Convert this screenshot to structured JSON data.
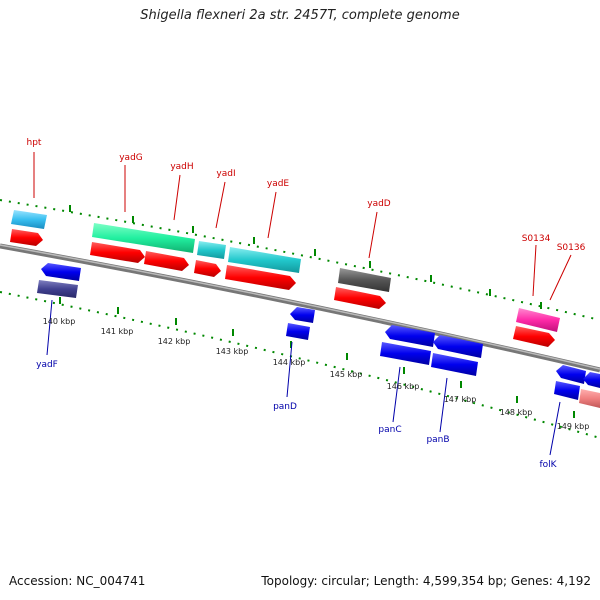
{
  "title": "Shigella flexneri 2a str. 2457T, complete genome",
  "footer": {
    "accession": "Accession: NC_004741",
    "summary": "Topology: circular; Length: 4,599,354 bp; Genes: 4,192"
  },
  "kbp_labels": [
    "140 kbp",
    "141 kbp",
    "142 kbp",
    "143 kbp",
    "144 kbp",
    "145 kbp",
    "146 kbp",
    "147 kbp",
    "148 kbp",
    "149 kbp"
  ],
  "forward_gene_labels": [
    "hpt",
    "yadG",
    "yadH",
    "yadI",
    "yadE",
    "yadD",
    "S0134",
    "S0136"
  ],
  "reverse_gene_labels": [
    "yadF",
    "panD",
    "panC",
    "panB",
    "folK"
  ],
  "colors": {
    "forward_label": "#cc0000",
    "reverse_label": "#0000aa",
    "backbone": "#888888",
    "ticks": "#008800",
    "cds_forward": "#ff0000",
    "cds_reverse": "#0000ee"
  }
}
